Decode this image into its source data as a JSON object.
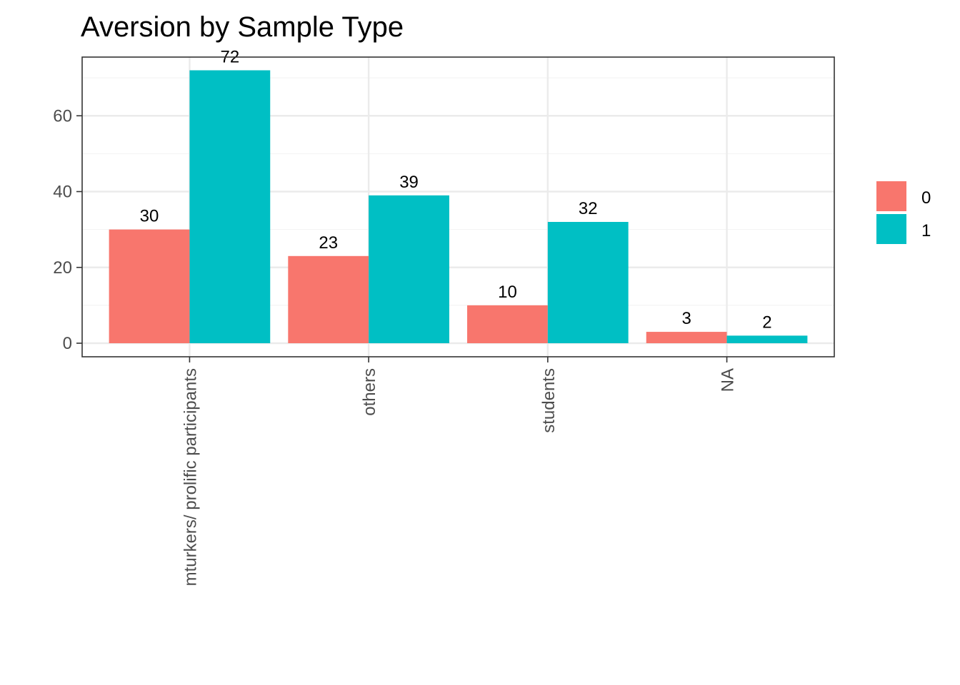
{
  "chart_data": {
    "type": "bar",
    "title": "Aversion by Sample Type",
    "xlabel": "",
    "ylabel": "",
    "categories": [
      "mturkers/ prolific participants",
      "others",
      "students",
      "NA"
    ],
    "series": [
      {
        "name": "0",
        "color": "#F8766D",
        "values": [
          30,
          23,
          10,
          3
        ]
      },
      {
        "name": "1",
        "color": "#00BFC4",
        "values": [
          72,
          39,
          32,
          2
        ]
      }
    ],
    "ylim": [
      0,
      74.8
    ],
    "yticks": [
      0,
      20,
      40,
      60
    ],
    "grid": true,
    "legend_position": "right"
  }
}
